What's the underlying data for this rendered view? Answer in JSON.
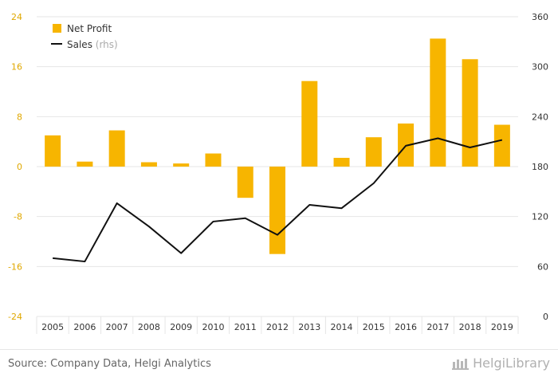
{
  "chart_data": {
    "type": "bar+line",
    "categories": [
      "2005",
      "2006",
      "2007",
      "2008",
      "2009",
      "2010",
      "2011",
      "2012",
      "2013",
      "2014",
      "2015",
      "2016",
      "2017",
      "2018",
      "2019"
    ],
    "series": [
      {
        "name": "Net Profit",
        "type": "bar",
        "axis": "left",
        "color": "#f7b500",
        "values": [
          5.0,
          0.8,
          5.8,
          0.7,
          0.5,
          2.1,
          -5.0,
          -14.0,
          13.7,
          1.4,
          4.7,
          6.9,
          20.5,
          17.2,
          6.7
        ]
      },
      {
        "name": "Sales",
        "type": "line",
        "axis": "right",
        "color": "#111111",
        "values": [
          70,
          66,
          136,
          108,
          76,
          114,
          118,
          98,
          134,
          130,
          160,
          205,
          214,
          203,
          212
        ]
      }
    ],
    "legend": {
      "rhs_suffix": "(rhs)"
    },
    "left_axis": {
      "ylim": [
        -24,
        24
      ],
      "ticks": [
        24,
        16,
        8,
        0,
        -8,
        -16,
        -24
      ],
      "color": "#e0a800"
    },
    "right_axis": {
      "ylim": [
        0,
        360
      ],
      "ticks": [
        360,
        300,
        240,
        180,
        120,
        60,
        0
      ],
      "color": "#333333"
    },
    "grid": true,
    "legend_position": "top-left"
  },
  "footer": {
    "source": "Source: Company Data, Helgi Analytics",
    "logo_text": "HelgiLibrary",
    "logo_icon": "helgi-library-icon"
  }
}
